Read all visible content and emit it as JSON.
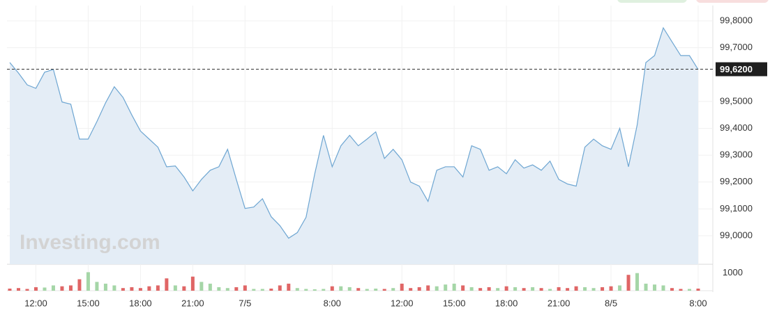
{
  "chart_data": [
    {
      "type": "area",
      "categories": [
        null,
        null,
        null,
        "12:00",
        null,
        null,
        null,
        null,
        null,
        "15:00",
        null,
        null,
        null,
        null,
        null,
        "18:00",
        null,
        null,
        null,
        null,
        null,
        "21:00",
        null,
        null,
        null,
        null,
        null,
        "7/5",
        null,
        null,
        null,
        null,
        null,
        null,
        null,
        null,
        null,
        "8:00",
        null,
        null,
        null,
        null,
        null,
        null,
        null,
        "12:00",
        null,
        null,
        null,
        null,
        null,
        "15:00",
        null,
        null,
        null,
        null,
        null,
        "18:00",
        null,
        null,
        null,
        null,
        null,
        "21:00",
        null,
        null,
        null,
        null,
        null,
        "8/5",
        null,
        null,
        null,
        null,
        null,
        null,
        null,
        null,
        null,
        "8:00"
      ],
      "values": [
        99.645,
        99.606,
        99.562,
        99.549,
        99.609,
        99.619,
        99.498,
        99.49,
        99.36,
        99.36,
        99.425,
        99.495,
        99.555,
        99.515,
        99.45,
        99.39,
        99.36,
        99.33,
        99.257,
        99.26,
        99.219,
        99.167,
        99.21,
        99.244,
        99.257,
        99.322,
        99.21,
        99.102,
        99.107,
        99.138,
        99.071,
        99.038,
        98.991,
        99.012,
        99.069,
        99.231,
        99.374,
        99.257,
        99.335,
        99.374,
        99.335,
        99.36,
        99.387,
        99.288,
        99.322,
        99.283,
        99.2,
        99.185,
        99.128,
        99.244,
        99.257,
        99.257,
        99.219,
        99.335,
        99.322,
        99.244,
        99.257,
        99.231,
        99.283,
        99.252,
        99.264,
        99.244,
        99.278,
        99.21,
        99.193,
        99.185,
        99.33,
        99.36,
        99.335,
        99.322,
        99.4,
        99.257,
        99.412,
        99.645,
        99.671,
        99.774,
        99.722,
        99.671,
        99.671,
        99.619
      ],
      "color": "#6ea6d2",
      "fill": "#e4edf6",
      "ylim": [
        98.894,
        99.857
      ],
      "yticks": [
        {
          "value": 99.0,
          "label": "99,0000"
        },
        {
          "value": 99.1,
          "label": "99,1000"
        },
        {
          "value": 99.2,
          "label": "99,2000"
        },
        {
          "value": 99.3,
          "label": "99,3000"
        },
        {
          "value": 99.4,
          "label": "99,4000"
        },
        {
          "value": 99.5,
          "label": "99,5000"
        },
        {
          "value": 99.7,
          "label": "99,7000"
        },
        {
          "value": 99.8,
          "label": "99,8000"
        }
      ],
      "current": {
        "value": 99.62,
        "label": "99,6200"
      },
      "grid": true,
      "watermark": "Investing.com"
    },
    {
      "type": "bar",
      "values": [
        120,
        150,
        100,
        200,
        180,
        300,
        250,
        300,
        650,
        1050,
        500,
        400,
        300,
        150,
        200,
        150,
        250,
        300,
        700,
        300,
        250,
        800,
        500,
        400,
        200,
        150,
        200,
        300,
        100,
        100,
        120,
        300,
        400,
        150,
        100,
        80,
        100,
        250,
        250,
        200,
        150,
        100,
        120,
        100,
        150,
        400,
        150,
        200,
        300,
        250,
        350,
        400,
        300,
        200,
        150,
        200,
        150,
        250,
        200,
        150,
        200,
        150,
        100,
        200,
        150,
        250,
        200,
        150,
        200,
        250,
        300,
        900,
        1000,
        400,
        350,
        300,
        150,
        100,
        100,
        120
      ],
      "ylim": [
        0,
        1500
      ],
      "yticks": [
        1000
      ],
      "up_color": "#a5d6a7",
      "down_color": "#e06666"
    }
  ]
}
